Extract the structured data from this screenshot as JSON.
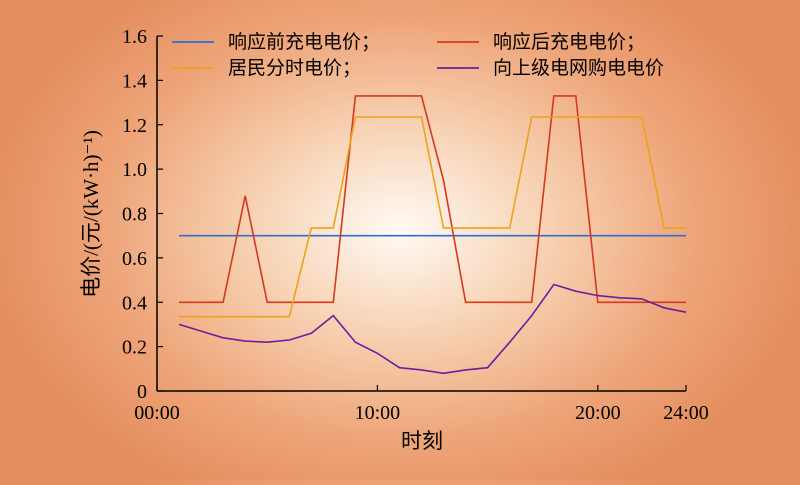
{
  "chart_data": {
    "type": "line",
    "xlabel": "时刻",
    "ylabel": "电价/(元/(kW·h)⁻¹)",
    "xlim": [
      0,
      24
    ],
    "ylim": [
      0,
      1.6
    ],
    "x_ticks": [
      {
        "value": 0,
        "label": "00:00"
      },
      {
        "value": 10,
        "label": "10:00"
      },
      {
        "value": 20,
        "label": "20:00"
      },
      {
        "value": 24,
        "label": "24:00"
      }
    ],
    "y_ticks": [
      {
        "value": 0,
        "label": "0"
      },
      {
        "value": 0.2,
        "label": "0.2"
      },
      {
        "value": 0.4,
        "label": "0.4"
      },
      {
        "value": 0.6,
        "label": "0.6"
      },
      {
        "value": 0.8,
        "label": "0.8"
      },
      {
        "value": 1.0,
        "label": "1.0"
      },
      {
        "value": 1.2,
        "label": "1.2"
      },
      {
        "value": 1.4,
        "label": "1.4"
      },
      {
        "value": 1.6,
        "label": "1.6"
      }
    ],
    "grid": false,
    "legend_position": "top",
    "series": [
      {
        "name": "响应前充电电价；",
        "color": "#2a6fd6",
        "points": [
          [
            1,
            0.7
          ],
          [
            24,
            0.7
          ]
        ]
      },
      {
        "name": "响应后充电电价；",
        "color": "#d43a1e",
        "points": [
          [
            1,
            0.4
          ],
          [
            2,
            0.4
          ],
          [
            3,
            0.4
          ],
          [
            4,
            0.88
          ],
          [
            5,
            0.4
          ],
          [
            6,
            0.4
          ],
          [
            7,
            0.4
          ],
          [
            8,
            0.4
          ],
          [
            9,
            1.33
          ],
          [
            10,
            1.33
          ],
          [
            11,
            1.33
          ],
          [
            12,
            1.33
          ],
          [
            13,
            0.95
          ],
          [
            14,
            0.4
          ],
          [
            15,
            0.4
          ],
          [
            16,
            0.4
          ],
          [
            17,
            0.4
          ],
          [
            18,
            1.33
          ],
          [
            19,
            1.33
          ],
          [
            20,
            0.4
          ],
          [
            21,
            0.4
          ],
          [
            22,
            0.4
          ],
          [
            23,
            0.4
          ],
          [
            24,
            0.4
          ]
        ]
      },
      {
        "name": "居民分时电价；",
        "color": "#eea21a",
        "points": [
          [
            1,
            0.335
          ],
          [
            2,
            0.335
          ],
          [
            3,
            0.335
          ],
          [
            4,
            0.335
          ],
          [
            5,
            0.335
          ],
          [
            6,
            0.335
          ],
          [
            7,
            0.735
          ],
          [
            8,
            0.735
          ],
          [
            9,
            1.235
          ],
          [
            10,
            1.235
          ],
          [
            11,
            1.235
          ],
          [
            12,
            1.235
          ],
          [
            13,
            0.735
          ],
          [
            14,
            0.735
          ],
          [
            15,
            0.735
          ],
          [
            16,
            0.735
          ],
          [
            17,
            1.235
          ],
          [
            18,
            1.235
          ],
          [
            19,
            1.235
          ],
          [
            20,
            1.235
          ],
          [
            21,
            1.235
          ],
          [
            22,
            1.235
          ],
          [
            23,
            0.735
          ],
          [
            24,
            0.735
          ]
        ]
      },
      {
        "name": "向上级电网购电电价",
        "color": "#6a1fa0",
        "points": [
          [
            1,
            0.3
          ],
          [
            2,
            0.27
          ],
          [
            3,
            0.24
          ],
          [
            4,
            0.225
          ],
          [
            5,
            0.22
          ],
          [
            6,
            0.23
          ],
          [
            7,
            0.26
          ],
          [
            8,
            0.34
          ],
          [
            9,
            0.22
          ],
          [
            10,
            0.17
          ],
          [
            11,
            0.105
          ],
          [
            12,
            0.095
          ],
          [
            13,
            0.08
          ],
          [
            14,
            0.095
          ],
          [
            15,
            0.105
          ],
          [
            16,
            0.22
          ],
          [
            17,
            0.34
          ],
          [
            18,
            0.48
          ],
          [
            19,
            0.45
          ],
          [
            20,
            0.43
          ],
          [
            21,
            0.42
          ],
          [
            22,
            0.415
          ],
          [
            23,
            0.375
          ],
          [
            24,
            0.355
          ]
        ]
      }
    ]
  }
}
